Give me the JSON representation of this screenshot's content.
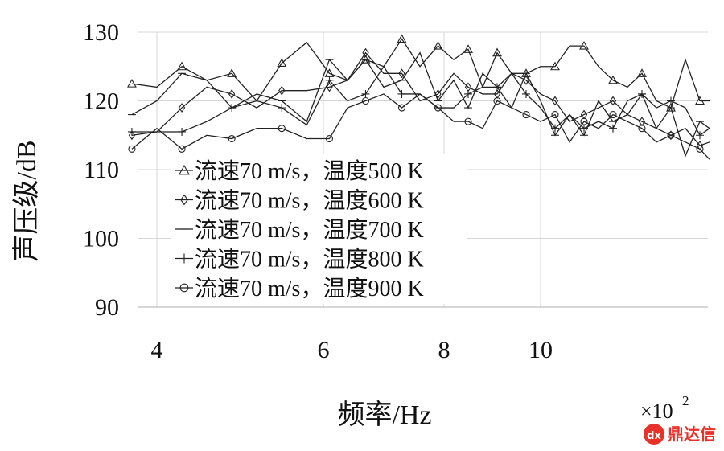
{
  "chart_data": {
    "type": "line",
    "xlabel": "频率/Hz",
    "ylabel": "声压级/dB",
    "x_multiplier": "×10",
    "x_multiplier_exp": "2",
    "x_ticks": [
      4,
      6,
      8,
      10
    ],
    "y_ticks": [
      90,
      100,
      110,
      120,
      130
    ],
    "xlim": [
      3.7,
      13.5
    ],
    "ylim": [
      90,
      130
    ],
    "grid": "horizontal and vertical",
    "legend_position": "lower-left inside plot",
    "x": [
      3.7,
      4.0,
      4.3,
      4.6,
      4.9,
      5.2,
      5.5,
      5.8,
      6.1,
      6.4,
      6.7,
      7.0,
      7.3,
      7.6,
      7.9,
      8.2,
      8.5,
      8.8,
      9.1,
      9.4,
      9.7,
      10.0,
      10.3,
      10.6,
      10.9,
      11.2,
      11.5,
      11.8,
      12.1,
      12.4,
      12.7,
      13.0,
      13.3,
      13.5
    ],
    "series": [
      {
        "name": "流速70 m/s，温度500 K",
        "marker": "triangle",
        "values": [
          122.5,
          122,
          125,
          123,
          124,
          120,
          125.5,
          128.5,
          124,
          123,
          126,
          125,
          129,
          125,
          128,
          126,
          127.5,
          122,
          127,
          124,
          124,
          125,
          125,
          128,
          128,
          125,
          123,
          122,
          124,
          120,
          119,
          126,
          120,
          120
        ]
      },
      {
        "name": "流速70 m/s，温度600 K",
        "marker": "diamond",
        "values": [
          115,
          115.5,
          119,
          122,
          121,
          119,
          121.5,
          121.5,
          122,
          123,
          127,
          124,
          124,
          120,
          121,
          124,
          122,
          121,
          121,
          124,
          123,
          121,
          120,
          117,
          118,
          119,
          120,
          118,
          117,
          116,
          115,
          116,
          113.5,
          114
        ]
      },
      {
        "name": "流速70 m/s，温度700 K",
        "marker": "dash",
        "values": [
          118,
          120,
          124,
          123,
          119,
          121,
          120,
          117,
          126,
          123,
          126,
          122,
          123,
          127,
          120,
          123,
          119,
          124,
          122,
          119,
          124,
          120,
          115,
          118,
          115,
          120,
          117,
          118,
          121,
          116,
          119,
          112,
          117,
          116
        ]
      },
      {
        "name": "流速70 m/s，温度800 K",
        "marker": "plus",
        "values": [
          115.5,
          115.5,
          115.5,
          117,
          119,
          120,
          119,
          116.5,
          123,
          120,
          121,
          125,
          121,
          121,
          119,
          119,
          121,
          122,
          122,
          124,
          121,
          119,
          116,
          118,
          116,
          117,
          116,
          120,
          121,
          119,
          120,
          119,
          115,
          116
        ]
      },
      {
        "name": "流速70 m/s，温度900 K",
        "marker": "circle",
        "values": [
          113,
          116,
          113,
          115,
          114.5,
          116,
          116,
          114.5,
          114.5,
          119,
          120,
          121,
          119,
          121,
          119,
          117,
          117,
          116,
          120,
          119,
          118,
          117,
          118,
          114,
          117,
          116,
          118,
          117,
          116,
          114,
          115,
          114,
          113,
          111.5
        ]
      }
    ]
  },
  "watermark": {
    "text": "鼎达信",
    "color": "#e8312a"
  }
}
